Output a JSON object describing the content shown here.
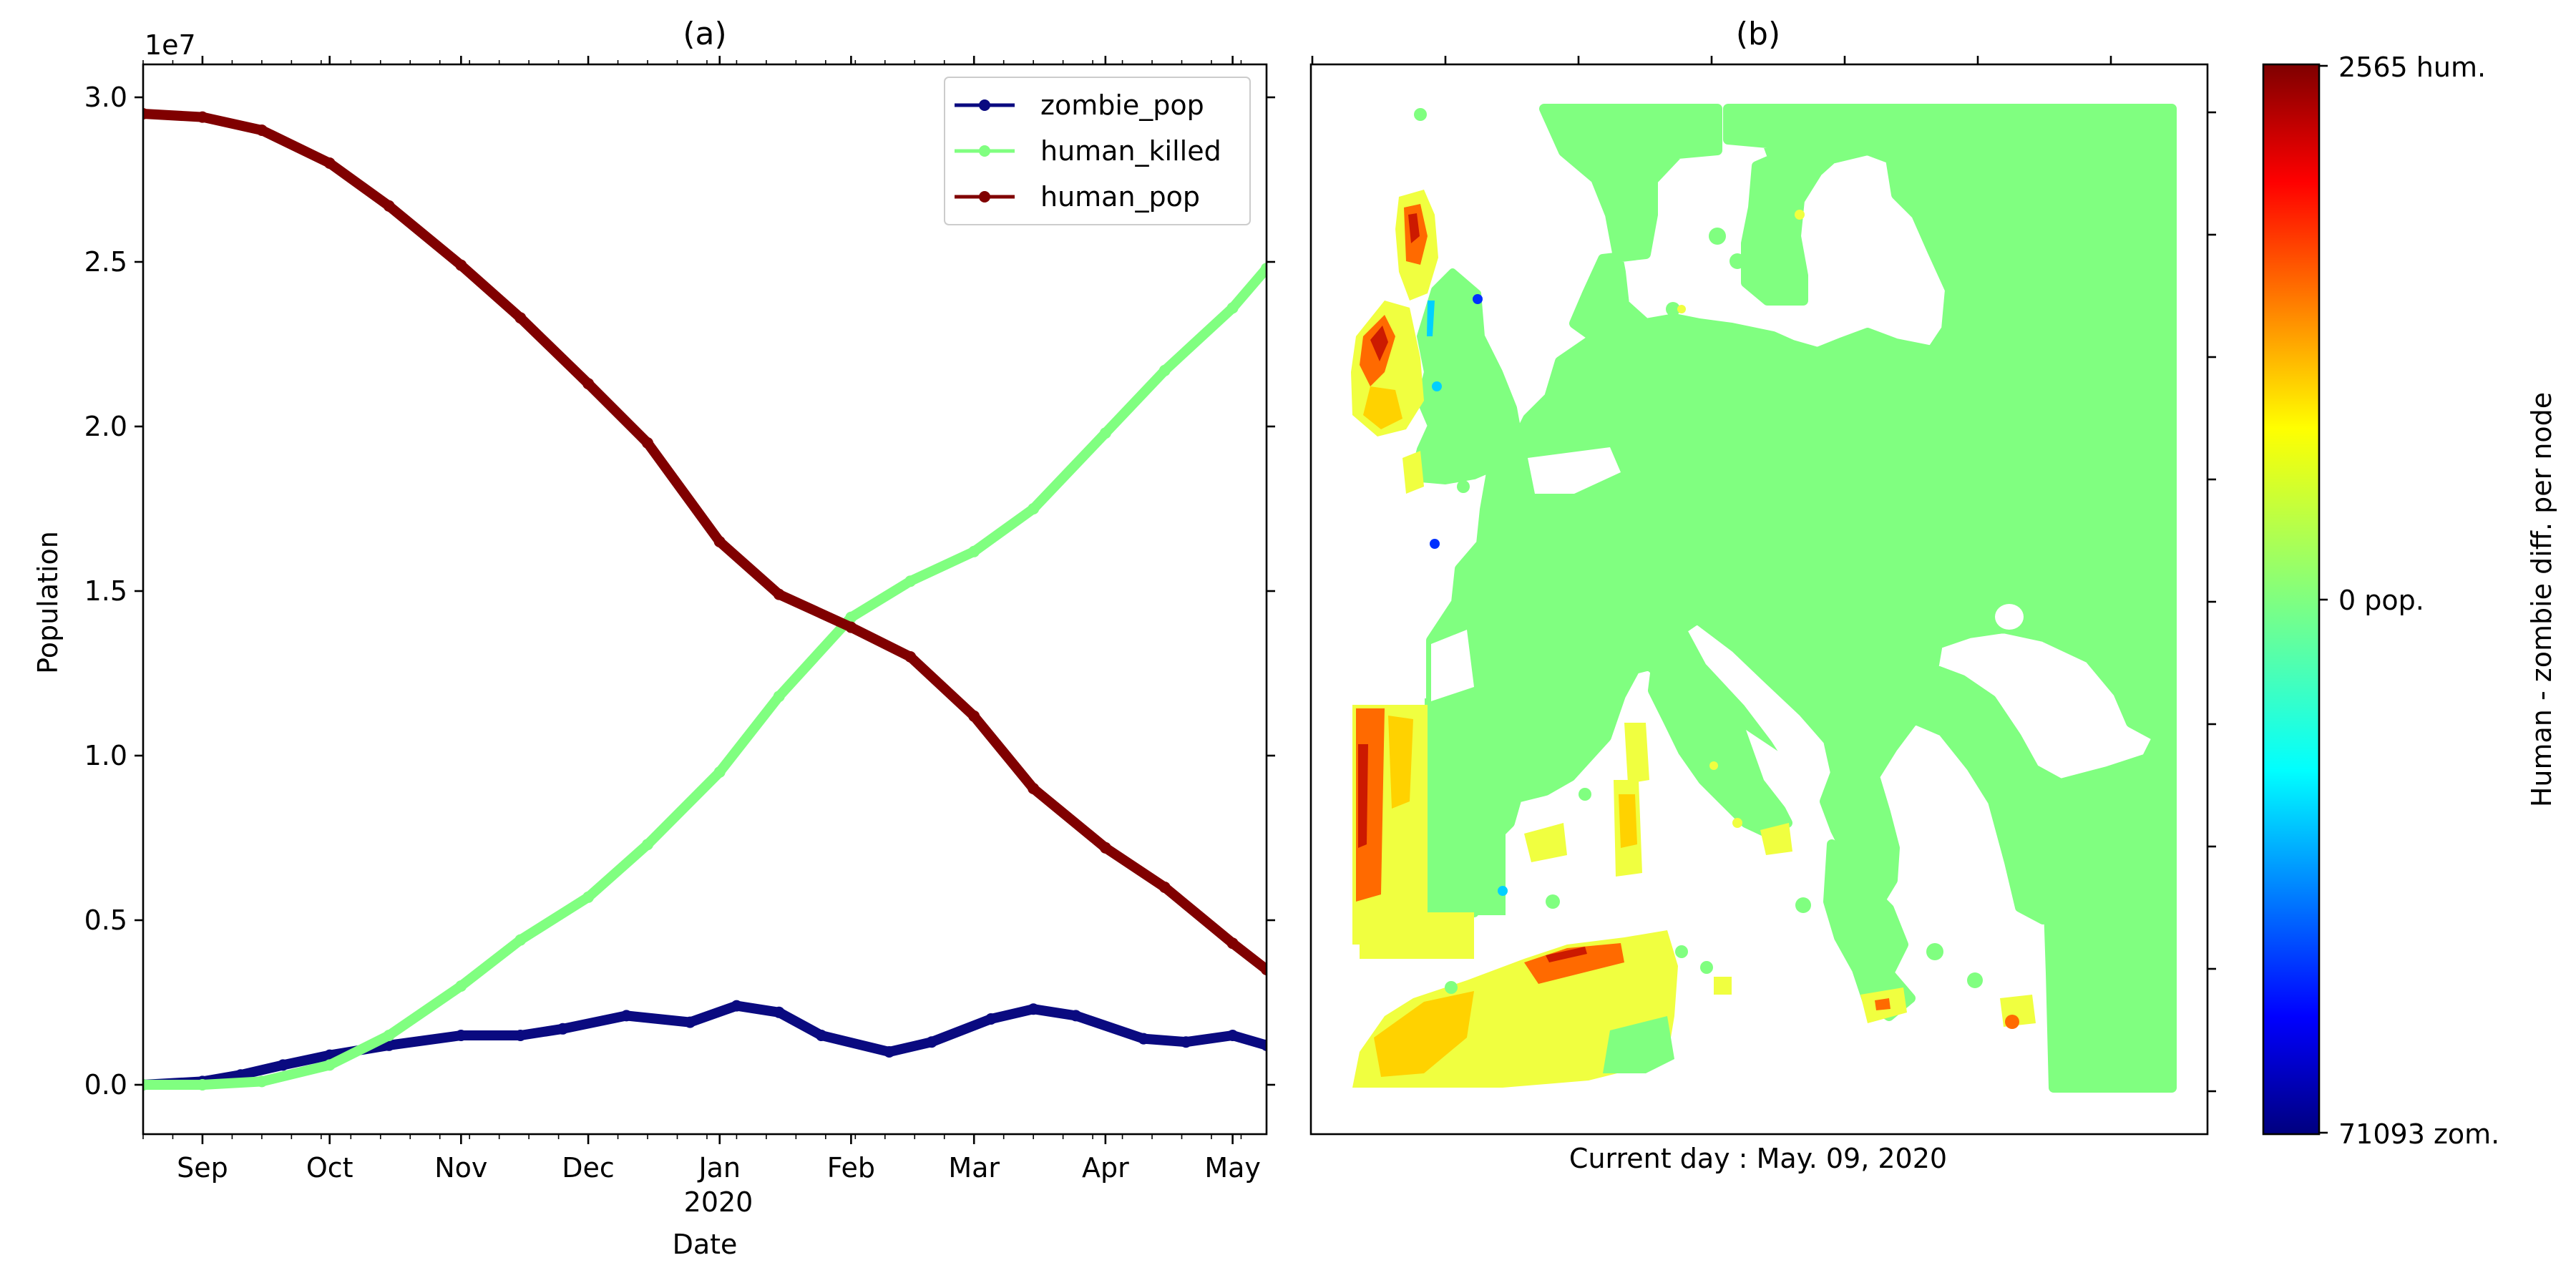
{
  "chart_data": [
    {
      "type": "line",
      "title": "(a)",
      "xlabel": "Date",
      "ylabel": "Population",
      "y_scale_label": "1e7",
      "x_tick_labels": [
        "Sep",
        "Oct",
        "Nov",
        "Dec",
        "Jan",
        "Feb",
        "Mar",
        "Apr",
        "May"
      ],
      "x_year_label": "2020",
      "xlim": [
        "2019-08-18",
        "2020-05-09"
      ],
      "ylim": [
        -0.15,
        3.1
      ],
      "y_ticks": [
        0.0,
        0.5,
        1.0,
        1.5,
        2.0,
        2.5,
        3.0
      ],
      "y_tick_labels": [
        "0.0",
        "0.5",
        "1.0",
        "1.5",
        "2.0",
        "2.5",
        "3.0"
      ],
      "y_unit_multiplier": 10000000,
      "grid": false,
      "legend_position": "top-right",
      "series": [
        {
          "name": "zombie_pop",
          "color": "#0a0a80",
          "points": [
            [
              "2019-08-18",
              0.0
            ],
            [
              "2019-09-01",
              0.01
            ],
            [
              "2019-09-10",
              0.03
            ],
            [
              "2019-09-20",
              0.06
            ],
            [
              "2019-10-01",
              0.09
            ],
            [
              "2019-10-15",
              0.12
            ],
            [
              "2019-11-01",
              0.15
            ],
            [
              "2019-11-15",
              0.15
            ],
            [
              "2019-11-25",
              0.17
            ],
            [
              "2019-12-10",
              0.21
            ],
            [
              "2019-12-25",
              0.19
            ],
            [
              "2020-01-05",
              0.24
            ],
            [
              "2020-01-15",
              0.22
            ],
            [
              "2020-01-25",
              0.15
            ],
            [
              "2020-02-10",
              0.1
            ],
            [
              "2020-02-20",
              0.13
            ],
            [
              "2020-03-05",
              0.2
            ],
            [
              "2020-03-15",
              0.23
            ],
            [
              "2020-03-25",
              0.21
            ],
            [
              "2020-04-10",
              0.14
            ],
            [
              "2020-04-20",
              0.13
            ],
            [
              "2020-05-01",
              0.15
            ],
            [
              "2020-05-09",
              0.12
            ]
          ]
        },
        {
          "name": "human_killed",
          "color": "#80ff80",
          "points": [
            [
              "2019-08-18",
              0.0
            ],
            [
              "2019-09-01",
              0.0
            ],
            [
              "2019-09-15",
              0.01
            ],
            [
              "2019-10-01",
              0.06
            ],
            [
              "2019-10-15",
              0.15
            ],
            [
              "2019-11-01",
              0.3
            ],
            [
              "2019-11-15",
              0.44
            ],
            [
              "2019-12-01",
              0.57
            ],
            [
              "2019-12-15",
              0.73
            ],
            [
              "2020-01-01",
              0.95
            ],
            [
              "2020-01-15",
              1.18
            ],
            [
              "2020-02-01",
              1.42
            ],
            [
              "2020-02-15",
              1.53
            ],
            [
              "2020-03-01",
              1.62
            ],
            [
              "2020-03-15",
              1.75
            ],
            [
              "2020-04-01",
              1.98
            ],
            [
              "2020-04-15",
              2.17
            ],
            [
              "2020-05-01",
              2.36
            ],
            [
              "2020-05-09",
              2.48
            ]
          ]
        },
        {
          "name": "human_pop",
          "color": "#800000",
          "points": [
            [
              "2019-08-18",
              2.95
            ],
            [
              "2019-09-01",
              2.94
            ],
            [
              "2019-09-15",
              2.9
            ],
            [
              "2019-10-01",
              2.8
            ],
            [
              "2019-10-15",
              2.67
            ],
            [
              "2019-11-01",
              2.49
            ],
            [
              "2019-11-15",
              2.33
            ],
            [
              "2019-12-01",
              2.13
            ],
            [
              "2019-12-15",
              1.95
            ],
            [
              "2020-01-01",
              1.65
            ],
            [
              "2020-01-15",
              1.49
            ],
            [
              "2020-02-01",
              1.39
            ],
            [
              "2020-02-15",
              1.3
            ],
            [
              "2020-03-01",
              1.12
            ],
            [
              "2020-03-15",
              0.9
            ],
            [
              "2020-04-01",
              0.72
            ],
            [
              "2020-04-15",
              0.6
            ],
            [
              "2020-05-01",
              0.43
            ],
            [
              "2020-05-09",
              0.35
            ]
          ]
        }
      ]
    },
    {
      "type": "heatmap",
      "title": "(b)",
      "caption": "Current day : May. 09, 2020",
      "colorbar_label": "Human - zombie diff. per node",
      "colorbar_tick_labels": [
        "2565 hum.",
        "0 pop.",
        "71093 zom."
      ],
      "colorbar_range": [
        -71093,
        2565
      ],
      "colormap": "jet",
      "background_value_color": "#80ff80",
      "colors": {
        "land": "#80ff80",
        "hot_dark": "#cc1a00",
        "hot": "#ff6a00",
        "warm": "#ffd200",
        "yellow": "#f0ff40",
        "cool": "#00d0ff",
        "cold": "#0030ff"
      }
    }
  ]
}
